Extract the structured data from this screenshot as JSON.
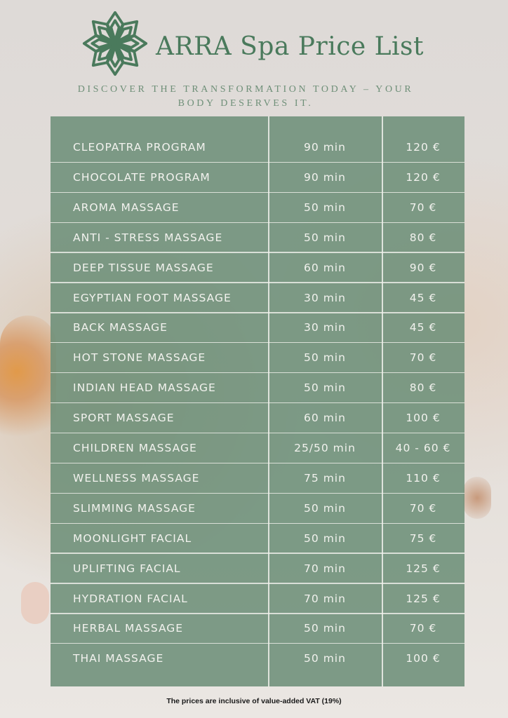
{
  "header": {
    "logo": "ARRA Spa",
    "title": "ARRA Spa Price List",
    "tagline_line1": "DISCOVER THE TRANSFORMATION TODAY – YOUR",
    "tagline_line2": "BODY DESERVES IT."
  },
  "colors": {
    "brand_green": "#4a7a5c",
    "table_bg": "#6d8f79",
    "text_on_table": "#f2f2ee"
  },
  "price_list": [
    {
      "name": "CLEOPATRA PROGRAM",
      "duration": "90 min",
      "price": "120 €"
    },
    {
      "name": "CHOCOLATE PROGRAM",
      "duration": "90 min",
      "price": "120 €"
    },
    {
      "name": "AROMA MASSAGE",
      "duration": "50 min",
      "price": "70 €"
    },
    {
      "name": "ANTI - STRESS MASSAGE",
      "duration": "50 min",
      "price": "80 €"
    },
    {
      "name": "DEEP TISSUE MASSAGE",
      "duration": "60 min",
      "price": "90 €"
    },
    {
      "name": "EGYPTIAN FOOT MASSAGE",
      "duration": "30 min",
      "price": "45 €"
    },
    {
      "name": "BACK MASSAGE",
      "duration": "30 min",
      "price": "45 €"
    },
    {
      "name": "HOT STONE MASSAGE",
      "duration": "50 min",
      "price": "70 €"
    },
    {
      "name": "INDIAN HEAD MASSAGE",
      "duration": "50 min",
      "price": "80 €"
    },
    {
      "name": "SPORT MASSAGE",
      "duration": "60 min",
      "price": "100 €"
    },
    {
      "name": "CHILDREN MASSAGE",
      "duration": "25/50 min",
      "price": "40 - 60 €"
    },
    {
      "name": "WELLNESS MASSAGE",
      "duration": "75 min",
      "price": "110 €"
    },
    {
      "name": "SLIMMING MASSAGE",
      "duration": "50 min",
      "price": "70 €"
    },
    {
      "name": "MOONLIGHT FACIAL",
      "duration": "50 min",
      "price": "75 €"
    },
    {
      "name": "UPLIFTING FACIAL",
      "duration": "70 min",
      "price": "125 €"
    },
    {
      "name": "HYDRATION FACIAL",
      "duration": "70 min",
      "price": "125 €"
    },
    {
      "name": "HERBAL MASSAGE",
      "duration": "50 min",
      "price": "70 €"
    },
    {
      "name": "THAI MASSAGE",
      "duration": "50 min",
      "price": "100 €"
    }
  ],
  "footer": "The prices are inclusive of value-added VAT (19%)"
}
